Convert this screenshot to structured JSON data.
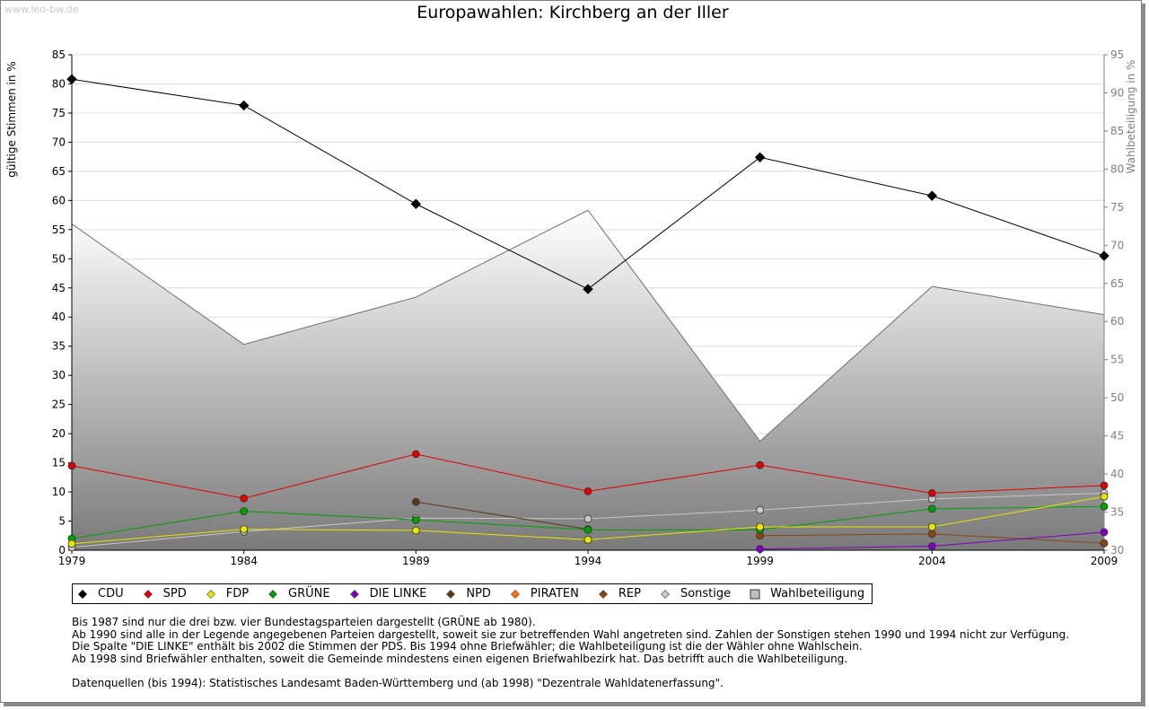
{
  "watermark": "www.leo-bw.de",
  "chart_data": {
    "type": "line",
    "title": "Europawahlen: Kirchberg an der Iller",
    "ylabel": "gültige Stimmen in %",
    "y2label": "Wahlbeteiligung in %",
    "x": [
      "1979",
      "1984",
      "1989",
      "1994",
      "1999",
      "2004",
      "2009"
    ],
    "ylim": [
      0,
      85
    ],
    "y2lim": [
      30,
      95
    ],
    "yticks": [
      "0",
      "5",
      "10",
      "15",
      "20",
      "25",
      "30",
      "35",
      "40",
      "45",
      "50",
      "55",
      "60",
      "65",
      "70",
      "75",
      "80",
      "85"
    ],
    "y2ticks": [
      "30",
      "35",
      "40",
      "45",
      "50",
      "55",
      "60",
      "65",
      "70",
      "75",
      "80",
      "85",
      "90",
      "95"
    ],
    "series": [
      {
        "name": "CDU",
        "color": "#000000",
        "values": [
          80.8,
          76.3,
          59.4,
          44.8,
          67.4,
          60.8,
          50.5
        ]
      },
      {
        "name": "SPD",
        "color": "#e00000",
        "values": [
          14.5,
          8.9,
          16.5,
          10.1,
          14.6,
          9.8,
          11.1
        ]
      },
      {
        "name": "FDP",
        "color": "#e6e600",
        "values": [
          1.1,
          3.6,
          3.4,
          1.8,
          4.0,
          4.0,
          9.2
        ]
      },
      {
        "name": "GRÜNE",
        "color": "#00a000",
        "values": [
          2.0,
          6.7,
          5.2,
          3.5,
          3.5,
          7.1,
          7.5
        ]
      },
      {
        "name": "DIE LINKE",
        "color": "#8000c0",
        "values": [
          null,
          null,
          null,
          null,
          0.2,
          0.7,
          3.1
        ]
      },
      {
        "name": "NPD",
        "color": "#5a3818",
        "values": [
          null,
          null,
          8.3,
          3.6,
          null,
          null,
          null
        ]
      },
      {
        "name": "PIRATEN",
        "color": "#ff7000",
        "values": [
          null,
          null,
          null,
          null,
          null,
          null,
          null
        ]
      },
      {
        "name": "REP",
        "color": "#8b4513",
        "values": [
          null,
          null,
          null,
          null,
          2.5,
          2.8,
          1.2
        ]
      },
      {
        "name": "Sonstige",
        "color": "#c8c8c8",
        "values": [
          0.5,
          3.2,
          5.5,
          5.4,
          6.9,
          8.8,
          9.8
        ]
      }
    ],
    "turnout": {
      "name": "Wahlbeteiligung",
      "color": "#c0c0c0",
      "values": [
        72.8,
        57.0,
        63.2,
        74.6,
        44.3,
        64.6,
        60.9
      ]
    }
  },
  "notes": [
    "Bis 1987 sind nur die drei bzw. vier Bundestagsparteien dargestellt (GRÜNE ab 1980).",
    "Ab 1990 sind alle in der Legende angegebenen Parteien dargestellt, soweit sie zur betreffenden Wahl angetreten sind. Zahlen der Sonstigen stehen 1990 und 1994 nicht zur Verfügung.",
    "Die Spalte \"DIE LINKE\" enthält bis 2002 die Stimmen der PDS. Bis 1994 ohne Briefwähler; die Wahlbeteiligung ist die der Wähler ohne Wahlschein.",
    "Ab 1998 sind Briefwähler enthalten, soweit die Gemeinde mindestens einen eigenen Briefwahlbezirk hat. Das betrifft auch die Wahlbeteiligung.",
    "",
    "Datenquellen (bis 1994): Statistisches Landesamt Baden-Württemberg und (ab 1998) \"Dezentrale Wahldatenerfassung\"."
  ]
}
